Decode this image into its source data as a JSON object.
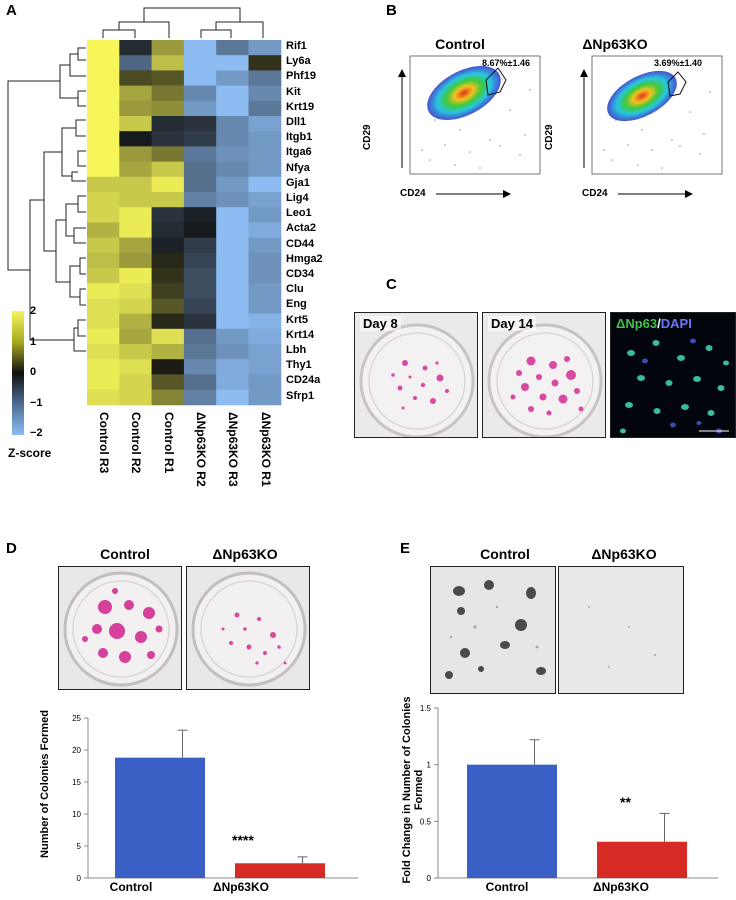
{
  "panels": {
    "a": "A",
    "b": "B",
    "c": "C",
    "d": "D",
    "e": "E"
  },
  "heatmap": {
    "genes": [
      "Rif1",
      "Ly6a",
      "Phf19",
      "Kit",
      "Krt19",
      "Dll1",
      "Itgb1",
      "Itga6",
      "Nfya",
      "Gja1",
      "Lig4",
      "Leo1",
      "Acta2",
      "CD44",
      "Hmga2",
      "CD34",
      "Clu",
      "Eng",
      "Krt5",
      "Krt14",
      "Lbh",
      "Thy1",
      "CD24a",
      "Sfrp1"
    ],
    "samples": [
      "Control R3",
      "Control R2",
      "Control R1",
      "ΔNp63KO R2",
      "ΔNp63KO R3",
      "ΔNp63KO R1"
    ],
    "zscores": [
      [
        2,
        -0.3,
        1.2,
        -2,
        -1.2,
        -1.6
      ],
      [
        2,
        -1,
        1.5,
        -2,
        -2,
        0.3
      ],
      [
        2,
        0.5,
        0.6,
        -2,
        -1.6,
        -1.2
      ],
      [
        2,
        1.3,
        0.9,
        -1.4,
        -2,
        -1.4
      ],
      [
        2,
        1.2,
        1.1,
        -1.6,
        -2,
        -1.2
      ],
      [
        2,
        1.6,
        -0.3,
        -0.4,
        -1.4,
        -1.7
      ],
      [
        2,
        -0.1,
        -0.4,
        -0.5,
        -1.4,
        -1.6
      ],
      [
        2,
        1.2,
        0.9,
        -1.2,
        -1.5,
        -1.6
      ],
      [
        2,
        1.3,
        1.6,
        -1.1,
        -1.4,
        -1.6
      ],
      [
        1.6,
        1.6,
        1.9,
        -1.1,
        -1.6,
        -2
      ],
      [
        1.7,
        1.6,
        1.6,
        -1.3,
        -1.5,
        -1.7
      ],
      [
        1.7,
        1.9,
        -0.4,
        -0.2,
        -2,
        -1.6
      ],
      [
        1.4,
        1.9,
        -0.3,
        -0.1,
        -2,
        -1.8
      ],
      [
        1.6,
        1.3,
        -0.2,
        -0.5,
        -2,
        -1.6
      ],
      [
        1.5,
        1.2,
        0.2,
        -0.6,
        -2,
        -1.5
      ],
      [
        1.6,
        1.9,
        0.3,
        -0.7,
        -2,
        -1.5
      ],
      [
        1.9,
        1.8,
        0.4,
        -0.7,
        -2,
        -1.6
      ],
      [
        1.8,
        1.7,
        0.6,
        -0.6,
        -2,
        -1.6
      ],
      [
        1.8,
        1.4,
        0.2,
        -0.4,
        -2,
        -1.9
      ],
      [
        1.9,
        1.3,
        1.8,
        -1.1,
        -1.6,
        -1.8
      ],
      [
        1.8,
        1.6,
        1.4,
        -1.2,
        -1.5,
        -1.7
      ],
      [
        1.9,
        1.8,
        0.1,
        -1.4,
        -1.8,
        -1.7
      ],
      [
        1.9,
        1.7,
        0.6,
        -1.1,
        -1.8,
        -1.6
      ],
      [
        1.8,
        1.7,
        1,
        -1.3,
        -2,
        -1.6
      ]
    ],
    "scale_ticks": [
      "2",
      "1",
      "0",
      "−1",
      "−2"
    ],
    "scale_label": "Z-score"
  },
  "flow": {
    "control_title": "Control",
    "ko_title": "ΔNp63KO",
    "control_pct": "8.67%±1.46",
    "ko_pct": "3.69%±1.40",
    "y_marker": "CD29",
    "x_marker": "CD24"
  },
  "culture": {
    "day8": "Day 8",
    "day14": "Day 14",
    "stain_green": "ΔNp63",
    "stain_sep": "/",
    "stain_blue": "DAPI"
  },
  "colony_d": {
    "control_title": "Control",
    "ko_title": "ΔNp63KO",
    "significance": "****"
  },
  "sphere_e": {
    "control_title": "Control",
    "ko_title": "ΔNp63KO",
    "significance": "**"
  },
  "colors": {
    "control": "#3a5fc5",
    "ko": "#d62b25",
    "low": "#8cbcf2",
    "mid": "#111111",
    "high": "#f6f65a"
  },
  "chart_data": [
    {
      "id": "colonies-formed",
      "type": "bar",
      "title": "",
      "categories": [
        "Control",
        "ΔNp63KO"
      ],
      "values": [
        18.8,
        2.3
      ],
      "errors": [
        4.3,
        1.0
      ],
      "ylabel": "Number of Colonies Formed",
      "xlabel": "",
      "ylim": [
        0,
        25
      ],
      "yticks": [
        "0",
        "5",
        "10",
        "15",
        "20",
        "25"
      ]
    },
    {
      "id": "fold-change",
      "type": "bar",
      "title": "",
      "categories": [
        "Control",
        "ΔNp63KO"
      ],
      "values": [
        1.0,
        0.32
      ],
      "errors": [
        0.22,
        0.25
      ],
      "ylabel": "Fold Change in Number of Colonies Formed",
      "xlabel": "",
      "ylim": [
        0,
        1.5
      ],
      "yticks": [
        "0",
        "0.5",
        "1",
        "1.5"
      ]
    }
  ]
}
